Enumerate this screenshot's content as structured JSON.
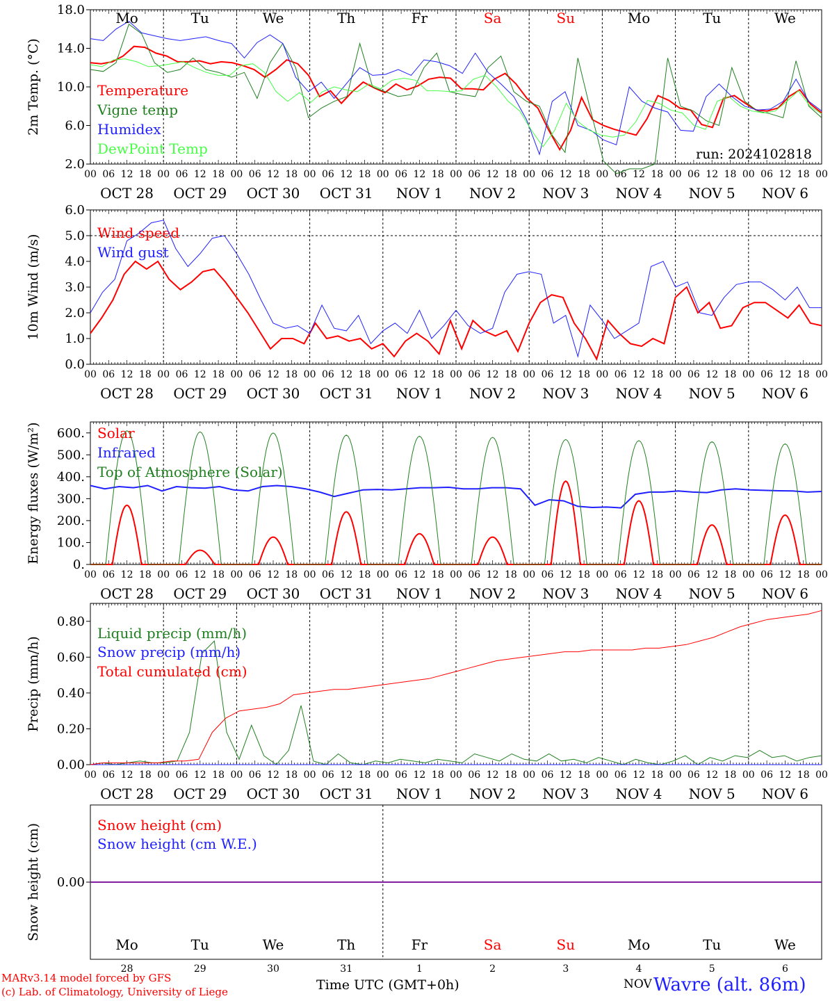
{
  "chart_data": [
    {
      "type": "line",
      "ylabel": "2m Temp. (°C)",
      "ylim": [
        2.0,
        18.0
      ],
      "yticks": [
        "2.0",
        "6.0",
        "10.0",
        "14.0",
        "18.0"
      ],
      "annotation": "run: 2024102818",
      "series": [
        {
          "name": "Temperature",
          "color": "#ff0000",
          "values": [
            12.5,
            12.4,
            12.6,
            13.2,
            14.2,
            14.1,
            13.5,
            13.2,
            12.6,
            12.6,
            12.7,
            12.4,
            12.6,
            12.5,
            12.2,
            11.8,
            11.0,
            11.8,
            12.8,
            12.4,
            11.2,
            9.0,
            9.6,
            8.3,
            9.5,
            10.5,
            9.9,
            9.4,
            10.3,
            9.7,
            10.1,
            10.8,
            11.0,
            10.9,
            9.8,
            9.8,
            9.7,
            10.8,
            11.4,
            10.3,
            8.8,
            7.8,
            5.5,
            3.5,
            5.5,
            8.9,
            6.6,
            6.0,
            5.6,
            5.3,
            5.0,
            6.7,
            9.1,
            8.6,
            7.8,
            7.6,
            6.1,
            5.8,
            8.8,
            9.1,
            8.3,
            7.6,
            7.5,
            7.8,
            9.0,
            9.7,
            8.2,
            7.3
          ],
          "linewidth": 2
        },
        {
          "name": "Vigne temp",
          "color": "#208020",
          "values": [
            11.8,
            11.6,
            12.5,
            16.5,
            15.5,
            12.5,
            11.5,
            11.8,
            13.0,
            11.8,
            11.5,
            11.0,
            11.5,
            8.8,
            12.5,
            14.5,
            12.0,
            6.8,
            7.8,
            8.5,
            9.0,
            14.5,
            10.0,
            9.5,
            9.0,
            9.2,
            12.0,
            13.5,
            9.5,
            9.2,
            9.0,
            12.0,
            13.2,
            9.5,
            8.5,
            8.0,
            5.0,
            3.2,
            13.0,
            7.5,
            2.3,
            1.0,
            1.5,
            1.5,
            2.0,
            13.0,
            8.0,
            7.5,
            6.5,
            6.0,
            12.0,
            8.5,
            7.5,
            7.2,
            6.8,
            12.7,
            8.0,
            6.8
          ],
          "linewidth": 1
        },
        {
          "name": "Humidex",
          "color": "#2020ff",
          "values": [
            15.0,
            14.8,
            16.0,
            16.8,
            15.6,
            15.3,
            15.0,
            14.8,
            15.0,
            15.2,
            14.8,
            14.5,
            13.0,
            14.6,
            15.4,
            14.5,
            11.0,
            9.5,
            10.5,
            8.8,
            10.4,
            12.0,
            11.2,
            11.3,
            11.8,
            11.2,
            12.8,
            12.6,
            12.2,
            11.4,
            13.5,
            11.5,
            10.3,
            9.0,
            6.6,
            3.0,
            8.5,
            9.5,
            6.0,
            5.5,
            4.5,
            4.0,
            10.0,
            8.5,
            7.8,
            7.4,
            5.5,
            5.4,
            9.0,
            10.3,
            9.0,
            8.0,
            7.6,
            7.7,
            8.5,
            10.8,
            8.5,
            7.5
          ],
          "linewidth": 1
        },
        {
          "name": "DewPoint Temp",
          "color": "#44ff44",
          "values": [
            12.3,
            12.1,
            12.8,
            12.9,
            12.6,
            12.1,
            12.2,
            12.4,
            12.6,
            12.0,
            11.5,
            11.2,
            11.2,
            12.2,
            12.4,
            11.5,
            9.5,
            8.5,
            9.4,
            8.4,
            9.5,
            10.0,
            9.7,
            9.5,
            10.3,
            9.8,
            10.7,
            10.9,
            10.7,
            9.6,
            9.6,
            9.5,
            9.6,
            10.8,
            11.2,
            10.0,
            8.5,
            7.5,
            5.5,
            3.8,
            5.5,
            8.3,
            6.4,
            5.5,
            5.0,
            4.8,
            5.0,
            6.4,
            8.6,
            8.3,
            7.6,
            7.3,
            6.0,
            5.6,
            8.5,
            9.0,
            8.0,
            7.5,
            7.3,
            7.5,
            8.5,
            9.6,
            8.0,
            7.2
          ],
          "linewidth": 1
        }
      ]
    },
    {
      "type": "line",
      "ylabel": "10m Wind (m/s)",
      "ylim": [
        0.0,
        6.0
      ],
      "yticks": [
        "0.0",
        "1.0",
        "2.0",
        "3.0",
        "4.0",
        "5.0",
        "6.0"
      ],
      "series": [
        {
          "name": "Wind speed",
          "color": "#ff0000",
          "values": [
            1.2,
            1.8,
            2.5,
            3.5,
            4.0,
            3.7,
            4.0,
            3.3,
            2.9,
            3.2,
            3.6,
            3.7,
            3.2,
            2.6,
            2.0,
            1.3,
            0.6,
            1.0,
            1.0,
            0.8,
            1.6,
            1.0,
            1.1,
            0.9,
            1.0,
            0.6,
            0.8,
            0.3,
            0.9,
            1.2,
            0.9,
            0.4,
            1.7,
            0.6,
            1.7,
            1.3,
            1.1,
            1.3,
            0.5,
            1.6,
            2.4,
            2.7,
            2.6,
            1.6,
            1.0,
            0.2,
            1.7,
            1.2,
            0.8,
            0.7,
            1.0,
            0.8,
            2.6,
            3.0,
            2.0,
            2.4,
            1.4,
            1.5,
            2.2,
            2.4,
            2.4,
            2.1,
            1.8,
            2.3,
            1.6,
            1.5
          ],
          "linewidth": 2
        },
        {
          "name": "Wind gust",
          "color": "#2020ff",
          "values": [
            2.0,
            2.8,
            3.3,
            4.8,
            5.1,
            5.5,
            5.6,
            4.5,
            3.8,
            4.3,
            4.9,
            5.0,
            4.3,
            3.5,
            2.5,
            1.6,
            1.4,
            1.5,
            1.2,
            2.3,
            1.4,
            1.3,
            1.9,
            0.8,
            1.3,
            1.6,
            1.2,
            2.1,
            1.0,
            1.5,
            2.1,
            1.5,
            1.2,
            1.4,
            2.8,
            3.5,
            3.6,
            3.5,
            1.6,
            1.9,
            0.3,
            2.3,
            1.7,
            1.0,
            1.3,
            1.6,
            3.8,
            4.0,
            3.0,
            3.2,
            2.0,
            1.9,
            2.6,
            3.1,
            3.2,
            3.2,
            2.9,
            2.5,
            3.0,
            2.2,
            2.2
          ],
          "linewidth": 1
        }
      ]
    },
    {
      "type": "line",
      "ylabel": "Energy fluxes (W/m²)",
      "ylim": [
        0,
        650
      ],
      "yticks": [
        "0.",
        "100.",
        "200.",
        "300.",
        "400.",
        "500.",
        "600."
      ],
      "series": [
        {
          "name": "Solar",
          "color": "#ff0000",
          "peaks": [
            270,
            65,
            125,
            240,
            140,
            125,
            380,
            290,
            180,
            225
          ],
          "linewidth": 2
        },
        {
          "name": "Infrared",
          "color": "#2020ff",
          "values": [
            360,
            345,
            355,
            350,
            360,
            335,
            355,
            350,
            348,
            355,
            340,
            335,
            355,
            360,
            355,
            345,
            330,
            310,
            325,
            340,
            342,
            340,
            345,
            350,
            350,
            352,
            345,
            345,
            350,
            350,
            345,
            270,
            295,
            290,
            265,
            260,
            262,
            258,
            320,
            330,
            330,
            335,
            330,
            328,
            340,
            345,
            340,
            338,
            336,
            335,
            330,
            333
          ],
          "linewidth": 2
        },
        {
          "name": "Top of Atmosphere (Solar)",
          "color": "#208020",
          "peaks": [
            610,
            605,
            600,
            590,
            585,
            580,
            570,
            565,
            560,
            550
          ],
          "linewidth": 1
        }
      ]
    },
    {
      "type": "line",
      "ylabel": "Precip (mm/h)",
      "ylim": [
        0.0,
        0.9
      ],
      "yticks": [
        "0.00",
        "0.20",
        "0.40",
        "0.60",
        "0.80"
      ],
      "series": [
        {
          "name": "Liquid precip (mm/h)",
          "color": "#208020",
          "values": [
            0.0,
            0.01,
            0.0,
            0.01,
            0.02,
            0.01,
            0.01,
            0.02,
            0.18,
            0.62,
            0.69,
            0.18,
            0.03,
            0.22,
            0.05,
            0.0,
            0.08,
            0.33,
            0.02,
            0.0,
            0.06,
            0.01,
            0.0,
            0.02,
            0.01,
            0.03,
            0.02,
            0.01,
            0.03,
            0.02,
            0.01,
            0.06,
            0.04,
            0.02,
            0.06,
            0.03,
            0.02,
            0.06,
            0.02,
            0.03,
            0.01,
            0.04,
            0.02,
            0.0,
            0.03,
            0.01,
            0.0,
            0.02,
            0.05,
            0.0,
            0.04,
            0.02,
            0.05,
            0.04,
            0.08,
            0.04,
            0.05,
            0.02,
            0.04,
            0.05
          ],
          "linewidth": 1
        },
        {
          "name": "Snow precip (mm/h)",
          "color": "#2020ff",
          "values": [
            0,
            0
          ],
          "linewidth": 1
        },
        {
          "name": "Total cumulated (cm)",
          "color": "#ff0000",
          "values": [
            0.0,
            0.01,
            0.01,
            0.01,
            0.01,
            0.01,
            0.02,
            0.02,
            0.03,
            0.18,
            0.26,
            0.3,
            0.31,
            0.32,
            0.34,
            0.39,
            0.4,
            0.41,
            0.42,
            0.42,
            0.43,
            0.44,
            0.45,
            0.46,
            0.47,
            0.48,
            0.5,
            0.52,
            0.54,
            0.56,
            0.58,
            0.59,
            0.6,
            0.61,
            0.62,
            0.63,
            0.63,
            0.64,
            0.64,
            0.64,
            0.64,
            0.65,
            0.65,
            0.66,
            0.67,
            0.69,
            0.71,
            0.74,
            0.77,
            0.79,
            0.81,
            0.82,
            0.83,
            0.84,
            0.86
          ],
          "linewidth": 1
        }
      ]
    },
    {
      "type": "line",
      "ylabel": "Snow height (cm)",
      "ylim": [
        -1.0,
        1.0
      ],
      "yticks": [
        "0.00"
      ],
      "series": [
        {
          "name": "Snow height (cm)",
          "color": "#ff0000",
          "values": [
            0,
            0
          ]
        },
        {
          "name": "Snow height (cm W.E.)",
          "color": "#2020ff",
          "values": [
            0,
            0
          ]
        }
      ]
    }
  ],
  "x_axis": {
    "hour_ticks": [
      "00",
      "06",
      "12",
      "18"
    ],
    "end_tick": "00",
    "dates": [
      "OCT 28",
      "OCT 29",
      "OCT 30",
      "OCT 31",
      "NOV  1",
      "NOV  2",
      "NOV  3",
      "NOV  4",
      "NOV  5",
      "NOV  6"
    ],
    "weekdays": [
      "Mo",
      "Tu",
      "We",
      "Th",
      "Fr",
      "Sa",
      "Su",
      "Mo",
      "Tu",
      "We"
    ],
    "weekday_colors": [
      "#000000",
      "#000000",
      "#000000",
      "#000000",
      "#000000",
      "#ff0000",
      "#ff0000",
      "#000000",
      "#000000",
      "#000000"
    ],
    "day_numbers": [
      "28",
      "29",
      "30",
      "31",
      "1",
      "2",
      "3",
      "4",
      "5",
      "6"
    ],
    "month_label": "NOV",
    "title": "Time UTC (GMT+0h)"
  },
  "footer": {
    "credit_line1": "MARv3.14 model forced by GFS",
    "credit_line2": "(c) Lab. of Climatology, University of Liege",
    "station": "Wavre (alt. 86m)"
  }
}
